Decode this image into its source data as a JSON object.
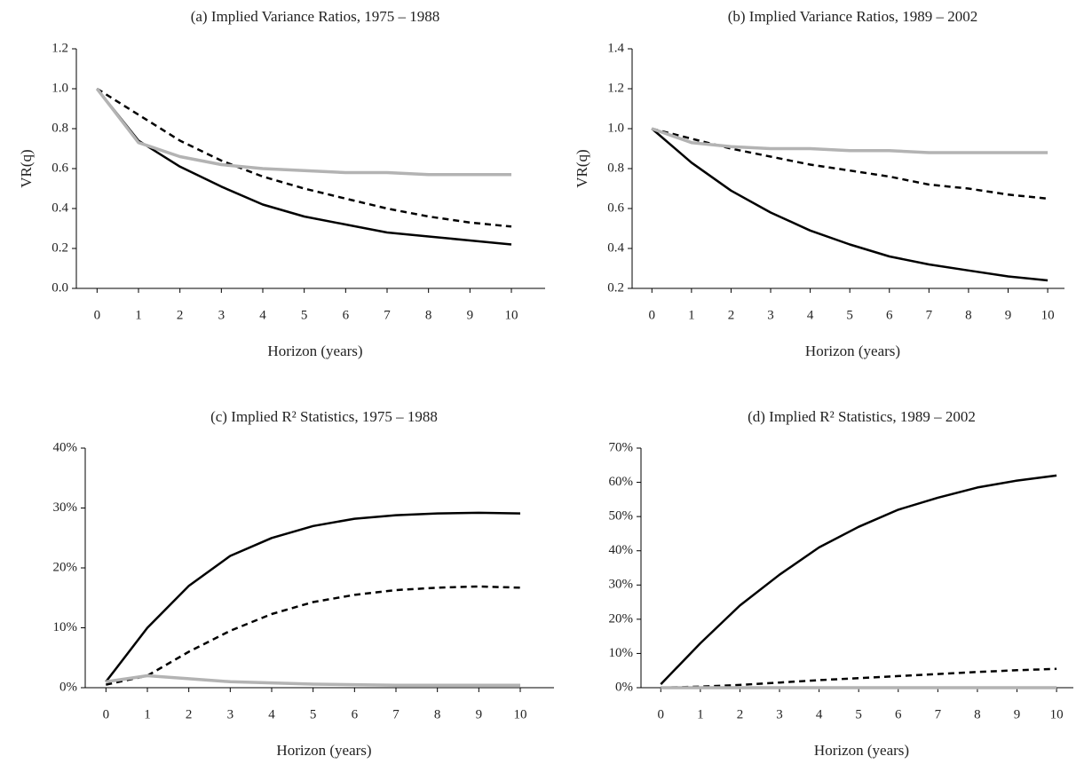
{
  "chart_data": [
    {
      "type": "line",
      "title": "(a) Implied Variance Ratios, 1975 – 1988",
      "xlabel": "Horizon (years)",
      "ylabel": "VR(q)",
      "x": [
        0,
        1,
        2,
        3,
        4,
        5,
        6,
        7,
        8,
        9,
        10
      ],
      "xlim": [
        -0.5,
        10.6
      ],
      "xticks": [
        0,
        1,
        2,
        3,
        4,
        5,
        6,
        7,
        8,
        9,
        10
      ],
      "ylim": [
        0,
        1.2
      ],
      "yticks": [
        {
          "value": 0,
          "label": "0.0"
        },
        0.2,
        0.4,
        0.6,
        0.8,
        {
          "value": 1,
          "label": "1.0"
        },
        1.2
      ],
      "series": [
        {
          "color": "#000000",
          "linestyle": "solid",
          "values": [
            1.0,
            0.74,
            0.61,
            0.51,
            0.42,
            0.36,
            0.32,
            0.28,
            0.26,
            0.24,
            0.22
          ]
        },
        {
          "color": "#000000",
          "linestyle": "dashed",
          "values": [
            1.0,
            0.87,
            0.74,
            0.64,
            0.56,
            0.5,
            0.45,
            0.4,
            0.36,
            0.33,
            0.31
          ]
        },
        {
          "color": "#b3b3b3",
          "linestyle": "solid",
          "values": [
            1.0,
            0.73,
            0.66,
            0.62,
            0.6,
            0.59,
            0.58,
            0.58,
            0.57,
            0.57,
            0.57
          ]
        }
      ]
    },
    {
      "type": "line",
      "title": "(b) Implied Variance Ratios, 1989 – 2002",
      "xlabel": "Horizon (years)",
      "ylabel": "VR(q)",
      "x": [
        0,
        1,
        2,
        3,
        4,
        5,
        6,
        7,
        8,
        9,
        10
      ],
      "xlim": [
        -0.5,
        10.2
      ],
      "xticks": [
        0,
        1,
        2,
        3,
        4,
        5,
        6,
        7,
        8,
        9,
        10
      ],
      "ylim": [
        0.2,
        1.4
      ],
      "yticks": [
        0.2,
        0.4,
        0.6,
        0.8,
        {
          "value": 1,
          "label": "1.0"
        },
        1.2,
        1.4
      ],
      "series": [
        {
          "color": "#000000",
          "linestyle": "solid",
          "values": [
            1.0,
            0.83,
            0.69,
            0.58,
            0.49,
            0.42,
            0.36,
            0.32,
            0.29,
            0.26,
            0.24
          ]
        },
        {
          "color": "#000000",
          "linestyle": "dashed",
          "values": [
            1.0,
            0.95,
            0.9,
            0.86,
            0.82,
            0.79,
            0.76,
            0.72,
            0.7,
            0.67,
            0.65
          ]
        },
        {
          "color": "#b3b3b3",
          "linestyle": "solid",
          "values": [
            1.0,
            0.93,
            0.91,
            0.9,
            0.9,
            0.89,
            0.89,
            0.88,
            0.88,
            0.88,
            0.88
          ]
        }
      ]
    },
    {
      "type": "line",
      "title": "(c) Implied R² Statistics, 1975 – 1988",
      "xlabel": "Horizon (years)",
      "x": [
        0,
        1,
        2,
        3,
        4,
        5,
        6,
        7,
        8,
        9,
        10
      ],
      "xlim": [
        -0.5,
        10.6
      ],
      "xticks": [
        0,
        1,
        2,
        3,
        4,
        5,
        6,
        7,
        8,
        9,
        10
      ],
      "ylim": [
        0,
        40
      ],
      "yticks": [
        {
          "value": 0,
          "label": "0%"
        },
        {
          "value": 10,
          "label": "10%"
        },
        {
          "value": 20,
          "label": "20%"
        },
        {
          "value": 30,
          "label": "30%"
        },
        {
          "value": 40,
          "label": "40%"
        }
      ],
      "series": [
        {
          "color": "#000000",
          "linestyle": "solid",
          "values": [
            1,
            10,
            17,
            22,
            25,
            27,
            28.2,
            28.8,
            29.1,
            29.2,
            29.1
          ]
        },
        {
          "color": "#000000",
          "linestyle": "dashed",
          "values": [
            0.5,
            2,
            6,
            9.5,
            12.3,
            14.3,
            15.5,
            16.3,
            16.7,
            16.9,
            16.7
          ]
        },
        {
          "color": "#b3b3b3",
          "linestyle": "solid",
          "values": [
            1,
            2,
            1.5,
            1,
            0.8,
            0.6,
            0.5,
            0.4,
            0.4,
            0.4,
            0.4
          ]
        }
      ]
    },
    {
      "type": "line",
      "title": "(d) Implied R² Statistics, 1989 – 2002",
      "xlabel": "Horizon (years)",
      "x": [
        0,
        1,
        2,
        3,
        4,
        5,
        6,
        7,
        8,
        9,
        10
      ],
      "xlim": [
        -0.5,
        10.2
      ],
      "xticks": [
        0,
        1,
        2,
        3,
        4,
        5,
        6,
        7,
        8,
        9,
        10
      ],
      "ylim": [
        0,
        70
      ],
      "yticks": [
        {
          "value": 0,
          "label": "0%"
        },
        {
          "value": 10,
          "label": "10%"
        },
        {
          "value": 20,
          "label": "20%"
        },
        {
          "value": 30,
          "label": "30%"
        },
        {
          "value": 40,
          "label": "40%"
        },
        {
          "value": 50,
          "label": "50%"
        },
        {
          "value": 60,
          "label": "60%"
        },
        {
          "value": 70,
          "label": "70%"
        }
      ],
      "series": [
        {
          "color": "#000000",
          "linestyle": "solid",
          "values": [
            1,
            13,
            24,
            33,
            41,
            47,
            52,
            55.5,
            58.5,
            60.5,
            62
          ]
        },
        {
          "color": "#000000",
          "linestyle": "dashed",
          "values": [
            0,
            0.3,
            0.8,
            1.5,
            2.2,
            2.8,
            3.4,
            4,
            4.6,
            5.1,
            5.5
          ]
        },
        {
          "color": "#b3b3b3",
          "linestyle": "solid",
          "values": [
            0,
            0,
            0,
            0,
            0,
            0,
            0,
            0,
            0,
            0,
            0
          ]
        }
      ]
    }
  ]
}
